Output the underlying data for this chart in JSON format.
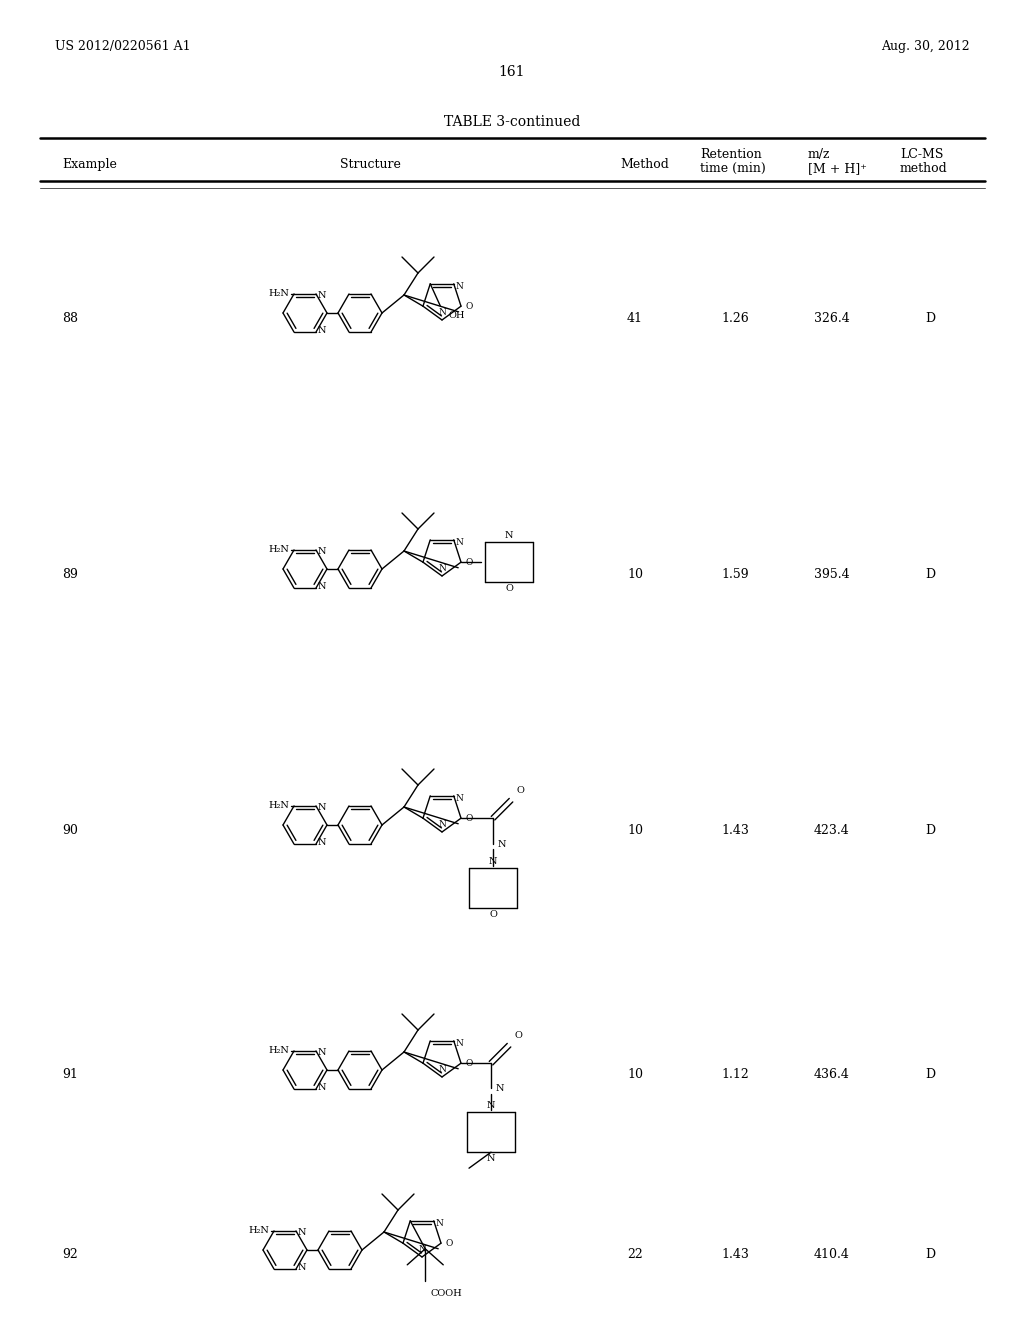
{
  "page_header_left": "US 2012/0220561 A1",
  "page_header_right": "Aug. 30, 2012",
  "page_number": "161",
  "table_title": "TABLE 3-continued",
  "rows": [
    {
      "example": "88",
      "method": "41",
      "retention": "1.26",
      "mz": "326.4",
      "lcms": "D"
    },
    {
      "example": "89",
      "method": "10",
      "retention": "1.59",
      "mz": "395.4",
      "lcms": "D"
    },
    {
      "example": "90",
      "method": "10",
      "retention": "1.43",
      "mz": "423.4",
      "lcms": "D"
    },
    {
      "example": "91",
      "method": "10",
      "retention": "1.12",
      "mz": "436.4",
      "lcms": "D"
    },
    {
      "example": "92",
      "method": "22",
      "retention": "1.43",
      "mz": "410.4",
      "lcms": "D"
    }
  ],
  "background_color": "#ffffff",
  "text_color": "#000000",
  "font_size_body": 9,
  "font_size_title": 10,
  "font_size_page": 9
}
